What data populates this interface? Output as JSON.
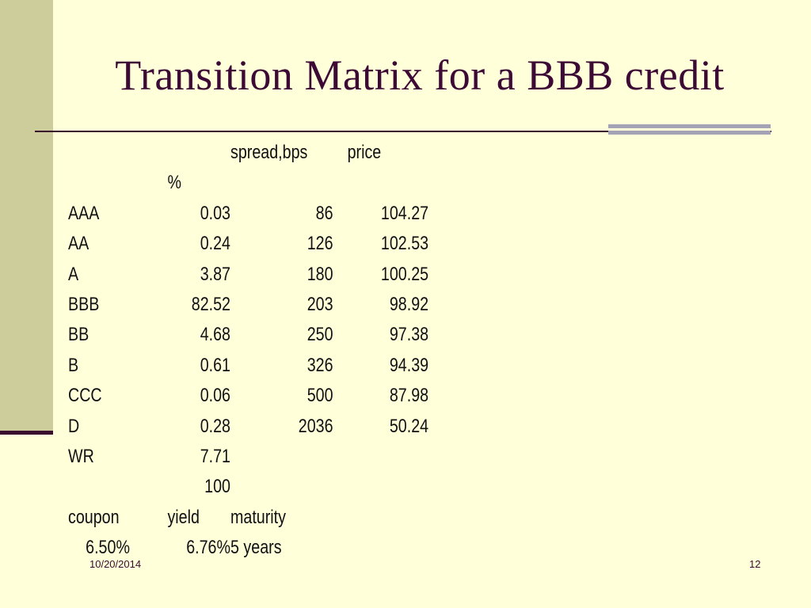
{
  "slide": {
    "title": "Transition Matrix for a BBB credit",
    "date": "10/20/2014",
    "page_number": "12"
  },
  "table": {
    "header": {
      "spread": "spread,bps",
      "price": "price",
      "percent": "%"
    },
    "rows": [
      {
        "rating": "AAA",
        "pct": "0.03",
        "spread": "86",
        "price": "104.27"
      },
      {
        "rating": "AA",
        "pct": "0.24",
        "spread": "126",
        "price": "102.53"
      },
      {
        "rating": "A",
        "pct": "3.87",
        "spread": "180",
        "price": "100.25"
      },
      {
        "rating": "BBB",
        "pct": "82.52",
        "spread": "203",
        "price": "98.92"
      },
      {
        "rating": "BB",
        "pct": "4.68",
        "spread": "250",
        "price": "97.38"
      },
      {
        "rating": "B",
        "pct": "0.61",
        "spread": "326",
        "price": "94.39"
      },
      {
        "rating": "CCC",
        "pct": "0.06",
        "spread": "500",
        "price": "87.98"
      },
      {
        "rating": "D",
        "pct": "0.28",
        "spread": "2036",
        "price": "50.24"
      },
      {
        "rating": "WR",
        "pct": "7.71"
      }
    ],
    "total": "100",
    "bond_header": {
      "coupon": "coupon",
      "yield": "yield",
      "maturity": "maturity"
    },
    "bond_values": {
      "coupon": "6.50%",
      "yield": "6.76%",
      "maturity": "5 years"
    }
  },
  "colors": {
    "background": "#FFFFD9",
    "side_band": "#CDCD9C",
    "title": "#3D0A35",
    "rule": "#3A0A2E",
    "rule_bar": "#A3A3B5"
  }
}
